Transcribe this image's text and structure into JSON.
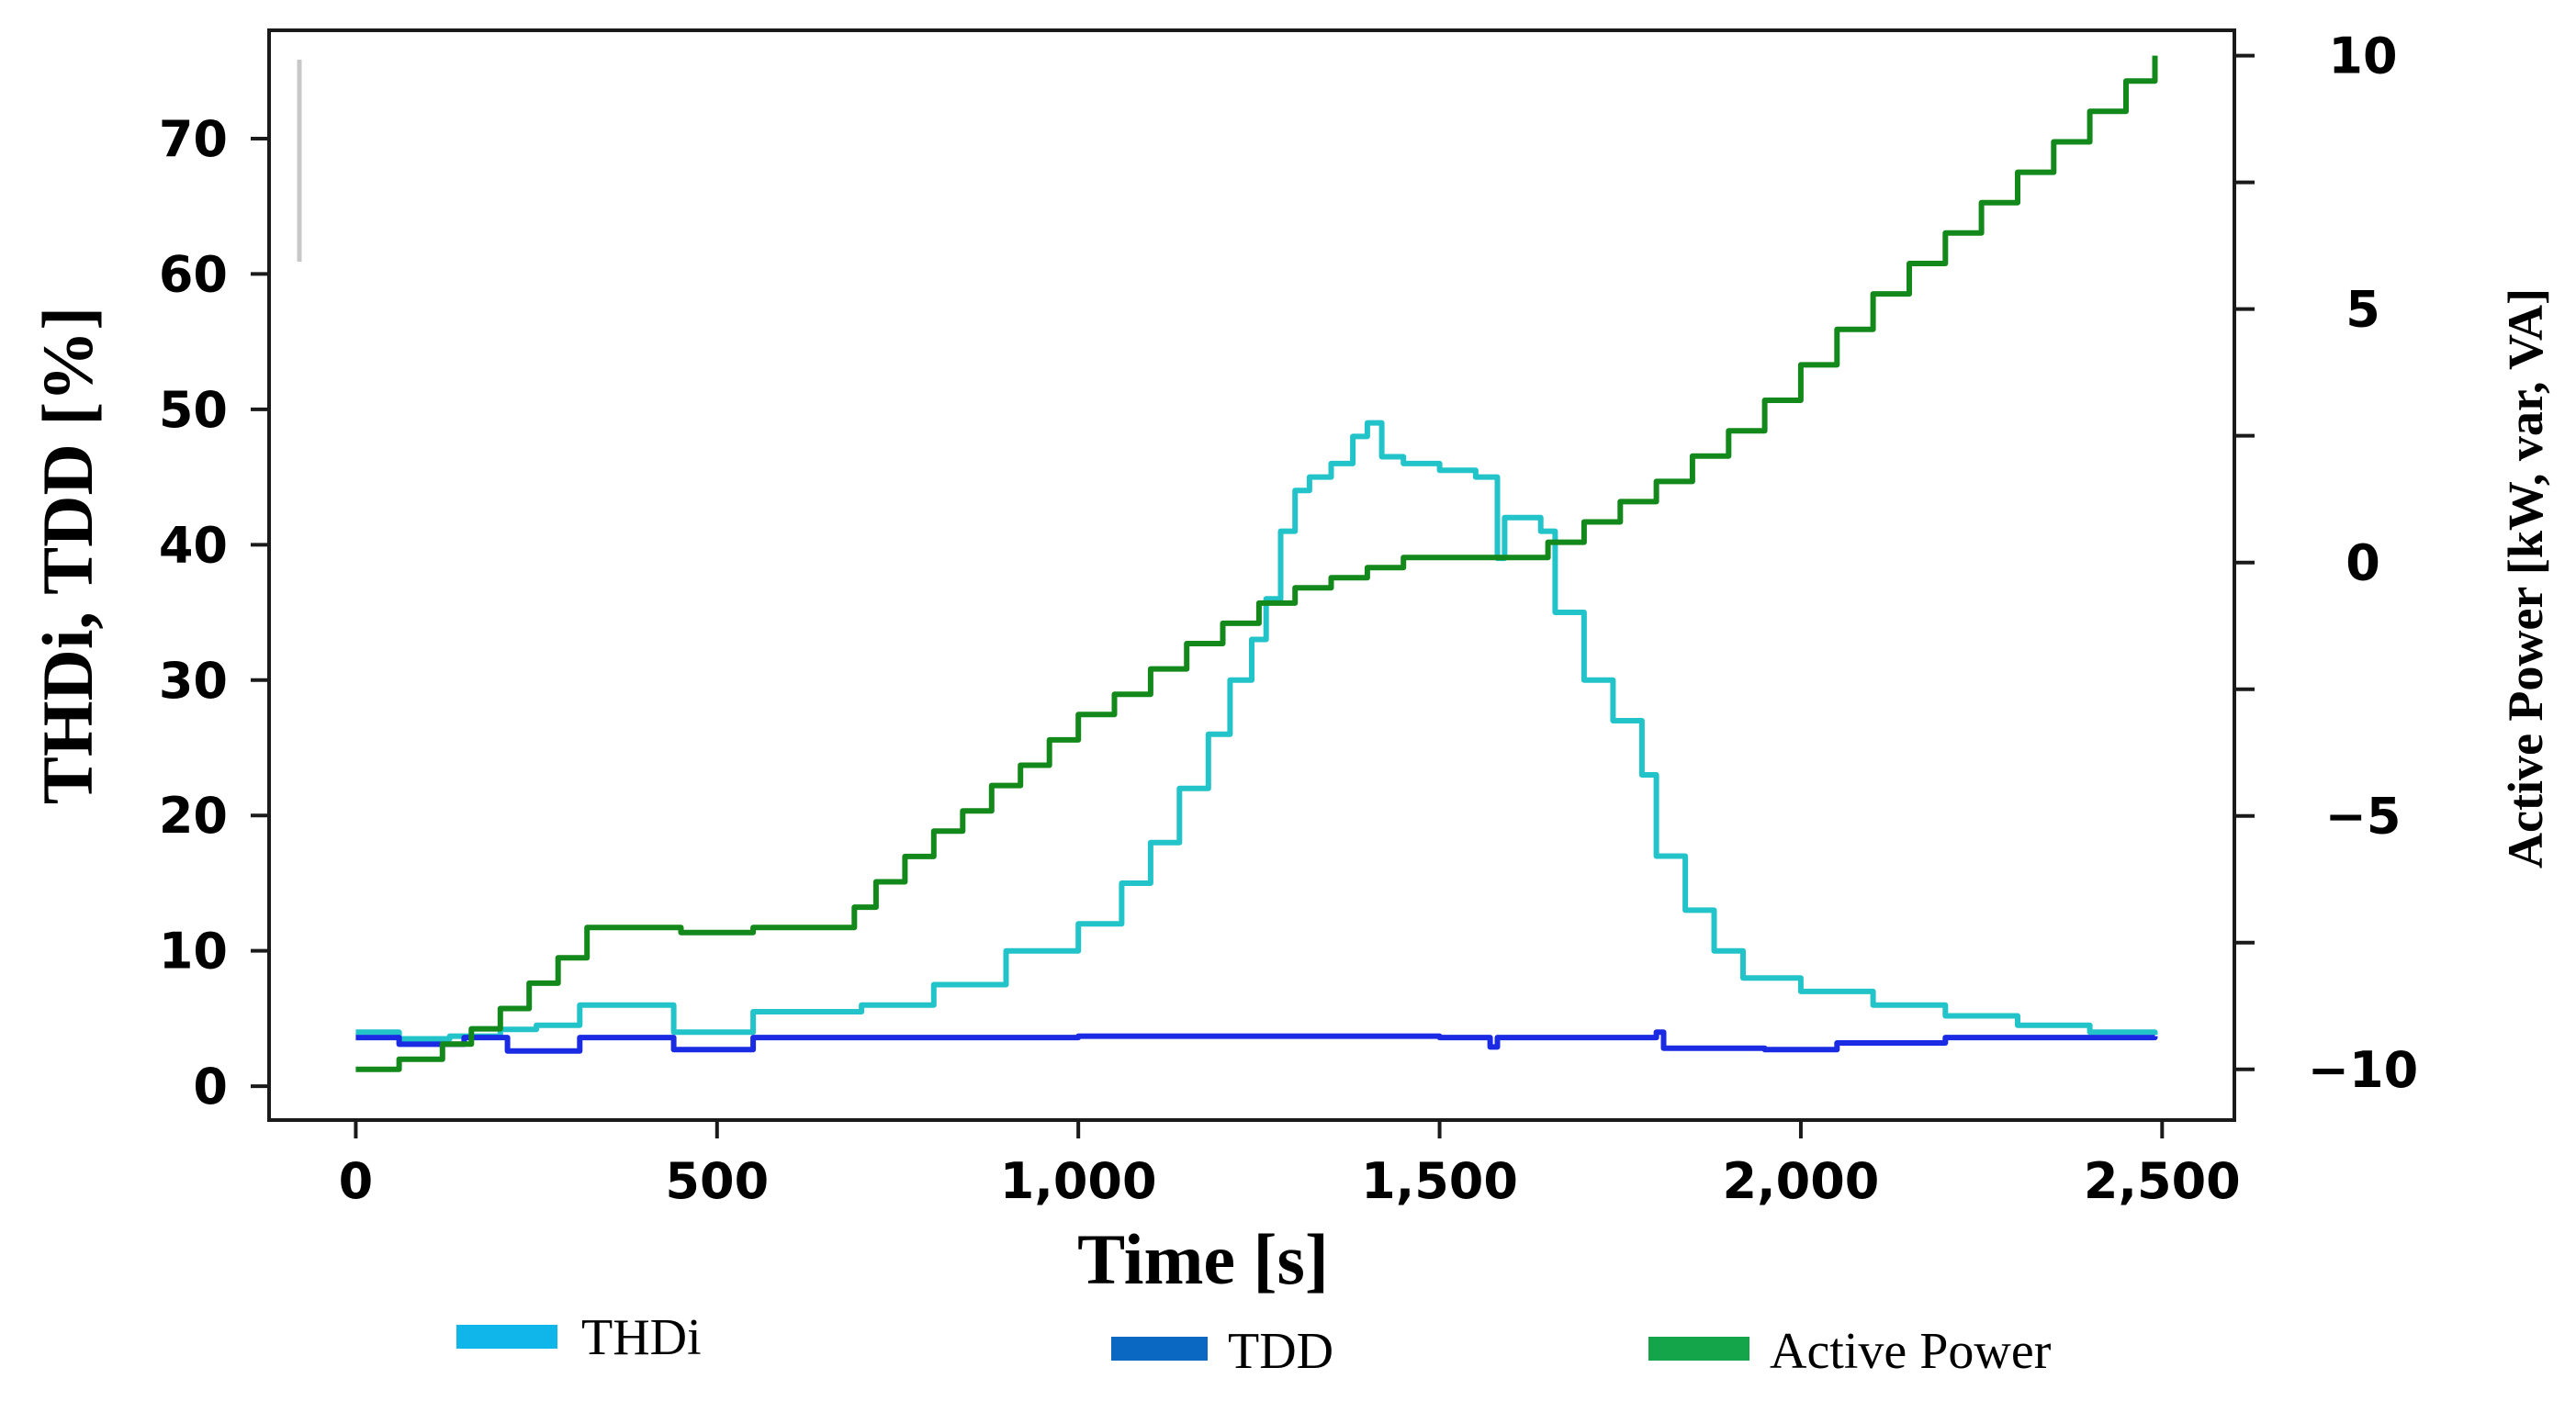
{
  "chart_data": {
    "type": "line",
    "xlabel": "Time [s]",
    "ylabel_left": "THDi, TDD [%]",
    "ylabel_right": "Active Power [kW, var, VA]",
    "xlim": [
      -120,
      2600
    ],
    "ylim_left": [
      -2.5,
      78
    ],
    "ylim_right": [
      -11,
      10.5
    ],
    "x_ticks": [
      0,
      500,
      1000,
      1500,
      2000,
      2500
    ],
    "x_tick_labels": [
      "0",
      "500",
      "1,000",
      "1,500",
      "2,000",
      "2,500"
    ],
    "y_left_ticks": [
      0,
      10,
      20,
      30,
      40,
      50,
      60,
      70
    ],
    "y_left_tick_labels": [
      "0",
      "10",
      "20",
      "30",
      "40",
      "50",
      "60",
      "70"
    ],
    "y_right_ticks": [
      10,
      5,
      0,
      -5,
      -10
    ],
    "y_right_tick_labels": [
      "10",
      "5",
      "0",
      "−5",
      "−10"
    ],
    "y_right_minor_ticks": [
      7.5,
      2.5,
      -2.5,
      -7.5
    ],
    "legend": [
      "THDi",
      "TDD",
      "Active Power"
    ],
    "legend_placement": "bottom",
    "colors": {
      "THDi_line": "#22c4c9",
      "THDi_legend": "#10b5ea",
      "TDD_line": "#1a2be3",
      "TDD_legend": "#0b68c2",
      "Active_Power": "#14891b",
      "Active_Power_legend": "#14a44a"
    },
    "series": [
      {
        "name": "THDi",
        "axis": "left",
        "x": [
          0,
          60,
          130,
          200,
          250,
          310,
          440,
          550,
          700,
          800,
          900,
          1000,
          1060,
          1100,
          1140,
          1180,
          1210,
          1240,
          1260,
          1280,
          1300,
          1320,
          1350,
          1380,
          1400,
          1420,
          1450,
          1500,
          1550,
          1580,
          1590,
          1640,
          1660,
          1700,
          1740,
          1780,
          1800,
          1840,
          1880,
          1920,
          2000,
          2100,
          2200,
          2300,
          2400,
          2490
        ],
        "y": [
          4,
          3.5,
          3.7,
          4.2,
          4.5,
          6,
          4,
          5.5,
          6,
          7.5,
          10,
          12,
          15,
          18,
          22,
          26,
          30,
          33,
          36,
          41,
          44,
          45,
          46,
          48,
          49,
          46.5,
          46,
          45.5,
          45,
          39,
          42,
          41,
          35,
          30,
          27,
          23,
          17,
          13,
          10,
          8,
          7,
          6,
          5.2,
          4.5,
          4,
          3.8
        ]
      },
      {
        "name": "TDD",
        "axis": "left",
        "x": [
          0,
          60,
          150,
          210,
          310,
          440,
          550,
          1000,
          1500,
          1570,
          1580,
          1800,
          1810,
          1950,
          2050,
          2200,
          2490
        ],
        "y": [
          3.6,
          3.1,
          3.6,
          2.6,
          3.6,
          2.7,
          3.6,
          3.7,
          3.6,
          2.9,
          3.6,
          4.0,
          2.8,
          2.7,
          3.2,
          3.6,
          3.7
        ]
      },
      {
        "name": "Active Power",
        "axis": "right",
        "x": [
          0,
          60,
          120,
          160,
          200,
          240,
          280,
          320,
          450,
          550,
          690,
          720,
          760,
          800,
          840,
          880,
          920,
          960,
          1000,
          1050,
          1100,
          1150,
          1200,
          1250,
          1300,
          1350,
          1400,
          1450,
          1600,
          1650,
          1700,
          1750,
          1800,
          1850,
          1900,
          1950,
          2000,
          2050,
          2100,
          2150,
          2200,
          2250,
          2300,
          2350,
          2400,
          2450,
          2490
        ],
        "y": [
          -10,
          -9.8,
          -9.5,
          -9.2,
          -8.8,
          -8.3,
          -7.8,
          -7.2,
          -7.3,
          -7.2,
          -6.8,
          -6.3,
          -5.8,
          -5.3,
          -4.9,
          -4.4,
          -4.0,
          -3.5,
          -3.0,
          -2.6,
          -2.1,
          -1.6,
          -1.2,
          -0.8,
          -0.5,
          -0.3,
          -0.1,
          0.1,
          0.1,
          0.4,
          0.8,
          1.2,
          1.6,
          2.1,
          2.6,
          3.2,
          3.9,
          4.6,
          5.3,
          5.9,
          6.5,
          7.1,
          7.7,
          8.3,
          8.9,
          9.5,
          10.0
        ]
      }
    ]
  }
}
